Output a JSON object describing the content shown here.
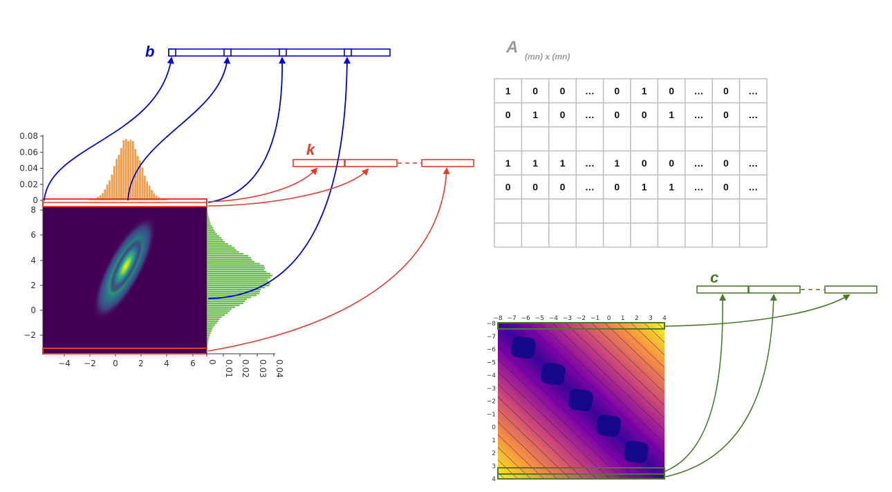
{
  "labels": {
    "b": "b",
    "k": "k",
    "c": "c",
    "A": "A",
    "A_sub": "(mn) x (mn)"
  },
  "colors": {
    "b": "#0000dd",
    "k": "#e8392b",
    "c": "#4a7a2a",
    "A": "#9a9a9a",
    "grid": "#c0c0c0",
    "top_hist": "#f39c4a",
    "right_hist": "#6dbb4a"
  },
  "matrix": {
    "rows": [
      [
        "1",
        "0",
        "0",
        "…",
        "0",
        "1",
        "0",
        "…",
        "0",
        "…"
      ],
      [
        "0",
        "1",
        "0",
        "…",
        "0",
        "0",
        "1",
        "…",
        "0",
        "…"
      ],
      [
        "",
        "",
        "",
        "",
        "",
        "",
        "",
        "",
        "",
        ""
      ],
      [
        "1",
        "1",
        "1",
        "…",
        "1",
        "0",
        "0",
        "…",
        "0",
        "…"
      ],
      [
        "0",
        "0",
        "0",
        "…",
        "0",
        "1",
        "1",
        "…",
        "0",
        "…"
      ],
      [
        "",
        "",
        "",
        "",
        "",
        "",
        "",
        "",
        "",
        ""
      ],
      [
        "",
        "",
        "",
        "",
        "",
        "",
        "",
        "",
        "",
        ""
      ]
    ]
  },
  "chart_data": [
    {
      "type": "heatmap",
      "x_ticks": [
        "−4",
        "−2",
        "0",
        "2",
        "4",
        "6"
      ],
      "y_ticks": [
        "8",
        "6",
        "4",
        "2",
        "0",
        "−2"
      ],
      "xlim": [
        -5.5,
        7
      ],
      "ylim": [
        -3.5,
        8.5
      ]
    },
    {
      "type": "bar",
      "y_ticks": [
        "0.08",
        "0.06",
        "0.04",
        "0.02",
        "0"
      ],
      "ylim": [
        0,
        0.085
      ]
    },
    {
      "type": "bar",
      "x_ticks": [
        "0",
        "0.01",
        "0.02",
        "0.03",
        "0.04"
      ],
      "xlim": [
        0,
        0.043
      ]
    },
    {
      "type": "heatmap",
      "x_ticks": [
        "−8",
        "−7",
        "−6",
        "−5",
        "−4",
        "−3",
        "−2",
        "−1",
        "0",
        "1",
        "2",
        "3",
        "4"
      ],
      "y_ticks": [
        "−8",
        "−7",
        "−6",
        "−5",
        "−4",
        "−3",
        "−2",
        "−1",
        "0",
        "1",
        "2",
        "3",
        "4"
      ],
      "xlim": [
        -8,
        4
      ],
      "ylim": [
        -8,
        4
      ]
    }
  ]
}
